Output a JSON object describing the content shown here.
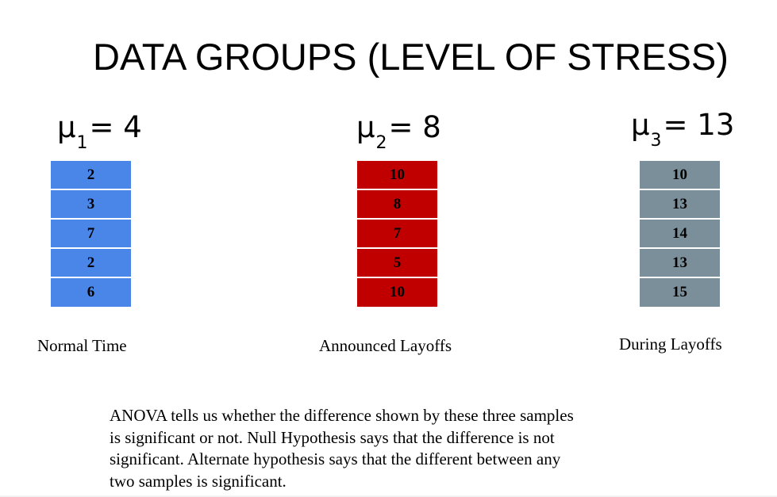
{
  "title": "DATA GROUPS (LEVEL OF STRESS)",
  "groups": [
    {
      "mu_symbol": "μ",
      "mu_sub": "1",
      "mu_eq": "= 4",
      "values": [
        "2",
        "3",
        "7",
        "2",
        "6"
      ],
      "label": "Normal Time",
      "color": "#4a86e8"
    },
    {
      "mu_symbol": "μ",
      "mu_sub": "2",
      "mu_eq": "= 8",
      "values": [
        "10",
        "8",
        "7",
        "5",
        "10"
      ],
      "label": "Announced Layoffs",
      "color": "#c00000"
    },
    {
      "mu_symbol": "μ",
      "mu_sub": "3",
      "mu_eq": "= 13",
      "values": [
        "10",
        "13",
        "14",
        "13",
        "15"
      ],
      "label": "During Layoffs",
      "color": "#7b8f9b"
    }
  ],
  "paragraph": [
    "ANOVA tells us whether the difference shown by these three samples",
    "is significant or not. Null Hypothesis says that the difference is not",
    "significant. Alternate hypothesis says that the different between any",
    "two samples is significant."
  ]
}
